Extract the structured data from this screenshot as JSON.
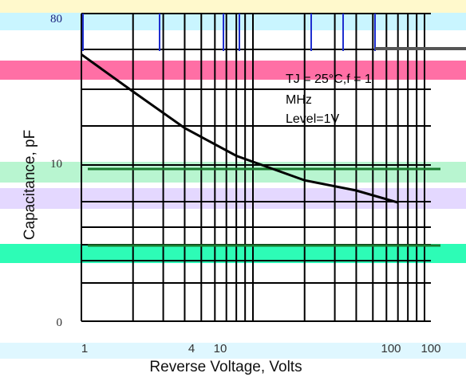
{
  "chart_data": {
    "type": "line",
    "title": "",
    "xlabel": "Reverse Voltage, Volts",
    "ylabel": "Capacitance, pF",
    "x_scale": "log",
    "y_scale": "log",
    "xlim": [
      1,
      100
    ],
    "ylim": [
      0,
      80
    ],
    "x_ticks": [
      "1",
      "4",
      "10",
      "100",
      "100"
    ],
    "y_ticks": [
      "80",
      "10",
      "0"
    ],
    "annotation": [
      "TJ = 25°C,f = 1",
      "MHz",
      "Level=1V"
    ],
    "grid": true,
    "series": [
      {
        "x": [
          1,
          2,
          4,
          8,
          20,
          40,
          70
        ],
        "y": [
          50,
          29,
          17,
          11.3,
          7.9,
          6.8,
          5.7
        ]
      }
    ]
  },
  "overlay_colors": [
    "#ffd6e8",
    "#ff6fa5",
    "#c9f5ff",
    "#b8f5d0",
    "#e4d8ff",
    "#2dfcb6",
    "#dff7ff",
    "#fff9cc"
  ],
  "curve_color": "#000000"
}
